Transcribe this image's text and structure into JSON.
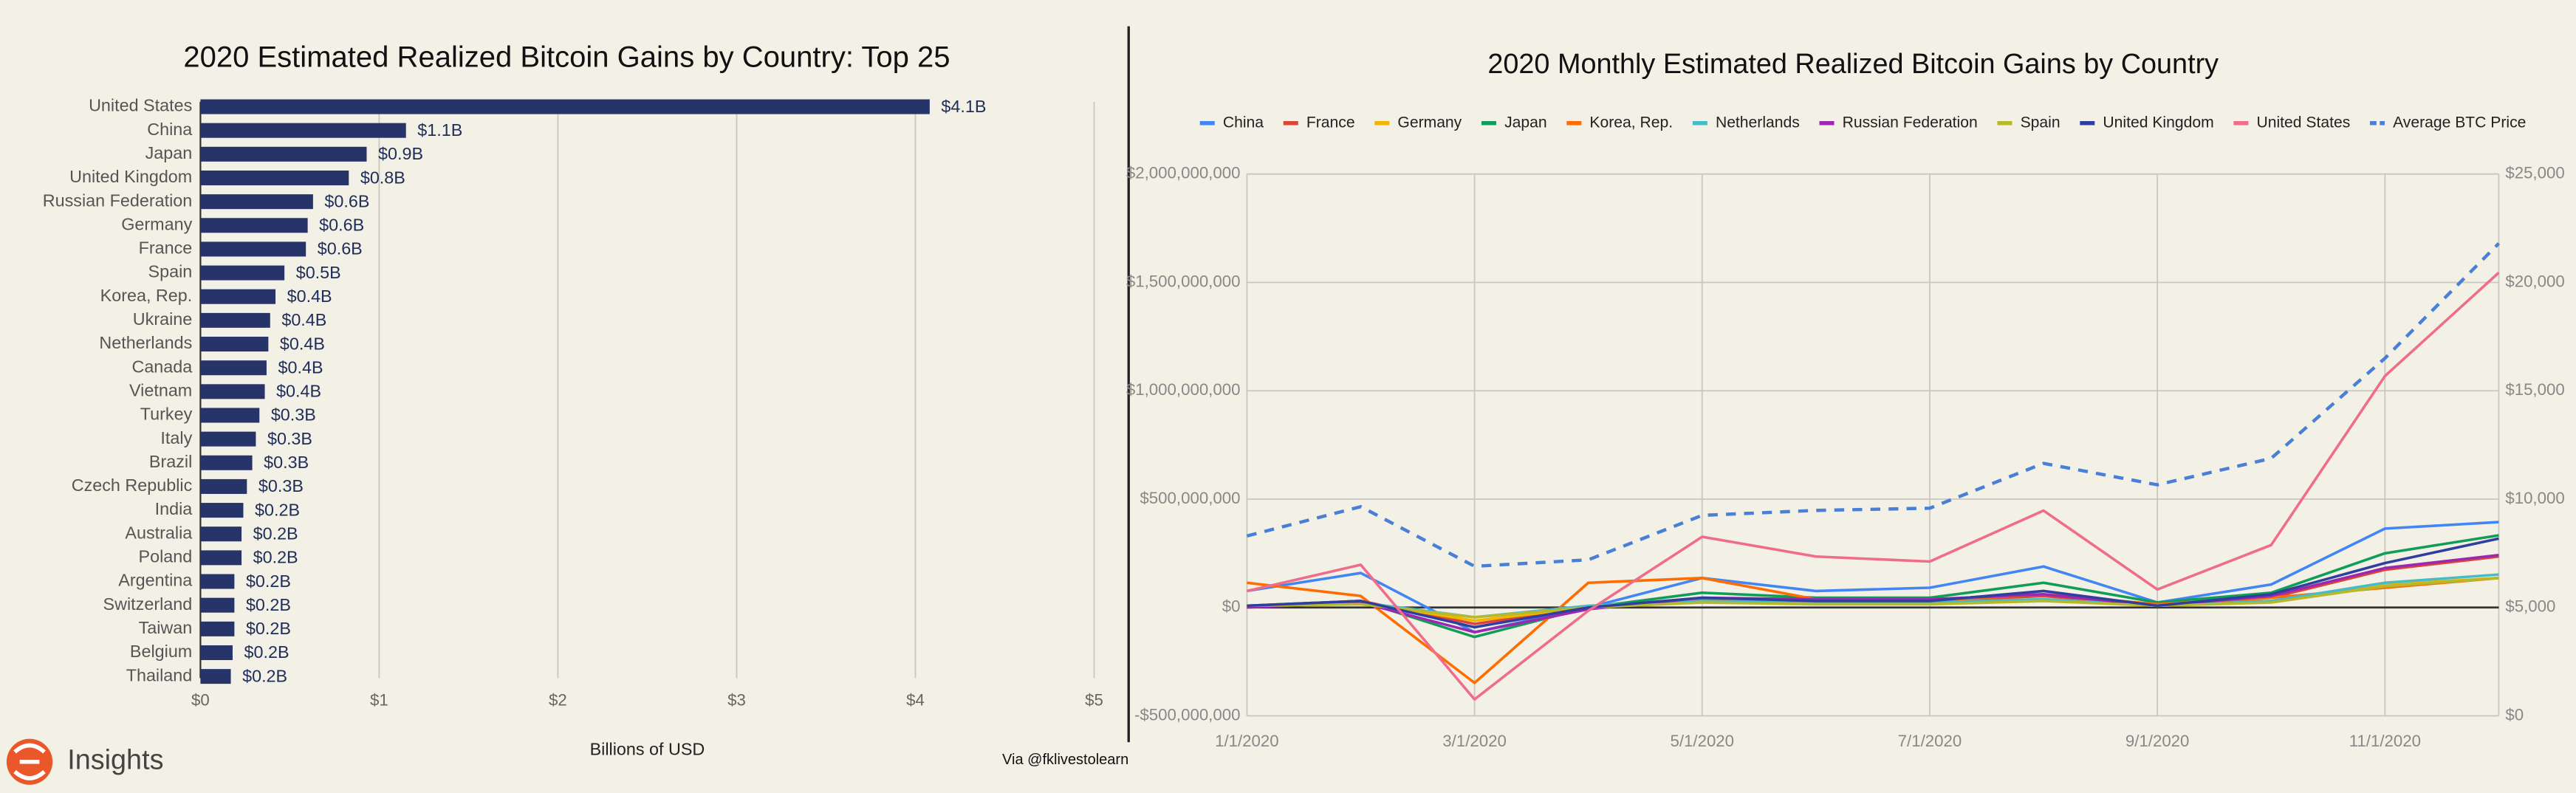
{
  "brand": "Insights",
  "credit": "Via @fklivestolearn",
  "chart_data": [
    {
      "type": "bar",
      "orientation": "horizontal",
      "title": "2020 Estimated Realized Bitcoin Gains by Country: Top 25",
      "xlabel": "Billions of USD",
      "categories": [
        "United States",
        "China",
        "Japan",
        "United Kingdom",
        "Russian Federation",
        "Germany",
        "France",
        "Spain",
        "Korea, Rep.",
        "Ukraine",
        "Netherlands",
        "Canada",
        "Vietnam",
        "Turkey",
        "Italy",
        "Brazil",
        "Czech Republic",
        "India",
        "Australia",
        "Poland",
        "Argentina",
        "Switzerland",
        "Taiwan",
        "Belgium",
        "Thailand"
      ],
      "values": [
        4.08,
        1.15,
        0.93,
        0.83,
        0.63,
        0.6,
        0.59,
        0.47,
        0.42,
        0.39,
        0.38,
        0.37,
        0.36,
        0.33,
        0.31,
        0.29,
        0.26,
        0.24,
        0.23,
        0.23,
        0.19,
        0.19,
        0.19,
        0.18,
        0.17
      ],
      "value_labels": [
        "$4.1B",
        "$1.1B",
        "$0.9B",
        "$0.8B",
        "$0.6B",
        "$0.6B",
        "$0.6B",
        "$0.5B",
        "$0.4B",
        "$0.4B",
        "$0.4B",
        "$0.4B",
        "$0.4B",
        "$0.3B",
        "$0.3B",
        "$0.3B",
        "$0.3B",
        "$0.2B",
        "$0.2B",
        "$0.2B",
        "$0.2B",
        "$0.2B",
        "$0.2B",
        "$0.2B",
        "$0.2B"
      ],
      "color": "#27346a",
      "xlim": [
        0,
        5
      ],
      "xticks": [
        {
          "value": 0,
          "label": "$0"
        },
        {
          "value": 1,
          "label": "$1"
        },
        {
          "value": 2,
          "label": "$2"
        },
        {
          "value": 3,
          "label": "$3"
        },
        {
          "value": 4,
          "label": "$4"
        },
        {
          "value": 5,
          "label": "$5"
        }
      ],
      "grid": true
    },
    {
      "type": "line",
      "title": "2020 Monthly Estimated Realized Bitcoin Gains by Country",
      "categories": [
        "1/1/2020",
        null,
        "3/1/2020",
        null,
        "5/1/2020",
        null,
        "7/1/2020",
        null,
        "9/1/2020",
        null,
        "11/1/2020",
        null
      ],
      "series": [
        {
          "name": "China",
          "color": "#4285f4",
          "values": [
            76000000,
            159000000,
            -114000000,
            0,
            136000000,
            76000000,
            91000000,
            189000000,
            23000000,
            106000000,
            364000000,
            394000000
          ]
        },
        {
          "name": "France",
          "color": "#db4437",
          "values": [
            8000000,
            30000000,
            -76000000,
            0,
            38000000,
            30000000,
            30000000,
            53000000,
            8000000,
            45000000,
            174000000,
            235000000
          ]
        },
        {
          "name": "Germany",
          "color": "#f4b400",
          "values": [
            8000000,
            23000000,
            -61000000,
            0,
            30000000,
            23000000,
            23000000,
            38000000,
            8000000,
            30000000,
            106000000,
            136000000
          ]
        },
        {
          "name": "Japan",
          "color": "#0f9d58",
          "values": [
            8000000,
            30000000,
            -136000000,
            0,
            68000000,
            45000000,
            45000000,
            114000000,
            23000000,
            68000000,
            250000000,
            333000000
          ]
        },
        {
          "name": "Korea, Rep.",
          "color": "#ff6d01",
          "values": [
            114000000,
            53000000,
            -348000000,
            114000000,
            136000000,
            38000000,
            30000000,
            61000000,
            15000000,
            45000000,
            91000000,
            136000000
          ]
        },
        {
          "name": "Netherlands",
          "color": "#46bdc6",
          "values": [
            8000000,
            23000000,
            -45000000,
            8000000,
            30000000,
            23000000,
            23000000,
            38000000,
            8000000,
            30000000,
            114000000,
            152000000
          ]
        },
        {
          "name": "Russian Federation",
          "color": "#9c27b0",
          "values": [
            0,
            23000000,
            -114000000,
            -8000000,
            45000000,
            38000000,
            38000000,
            61000000,
            8000000,
            53000000,
            182000000,
            242000000
          ]
        },
        {
          "name": "Spain",
          "color": "#b7b82a",
          "values": [
            8000000,
            15000000,
            -45000000,
            0,
            23000000,
            15000000,
            15000000,
            30000000,
            8000000,
            23000000,
            98000000,
            136000000
          ]
        },
        {
          "name": "United Kingdom",
          "color": "#303f9f",
          "values": [
            8000000,
            30000000,
            -91000000,
            0,
            45000000,
            30000000,
            30000000,
            76000000,
            8000000,
            61000000,
            205000000,
            318000000
          ]
        },
        {
          "name": "United States",
          "color": "#ef6c8a",
          "values": [
            76000000,
            197000000,
            -424000000,
            -15000000,
            326000000,
            235000000,
            212000000,
            447000000,
            83000000,
            288000000,
            1068000000,
            1545000000
          ]
        },
        {
          "name": "Average BTC Price",
          "color": "#4a7fd8",
          "axis": "y2",
          "line_style": "dashed",
          "values": [
            8300,
            9650,
            6900,
            7200,
            9250,
            9480,
            9580,
            11650,
            10660,
            11880,
            16500,
            21800
          ]
        }
      ],
      "ylim": [
        -500000000,
        2000000000
      ],
      "yticks": [
        {
          "value": -500000000,
          "label": "-$500,000,000"
        },
        {
          "value": 0,
          "label": "$0"
        },
        {
          "value": 500000000,
          "label": "$500,000,000"
        },
        {
          "value": 1000000000,
          "label": "$1,000,000,000"
        },
        {
          "value": 1500000000,
          "label": "$1,500,000,000"
        },
        {
          "value": 2000000000,
          "label": "$2,000,000,000"
        }
      ],
      "y2lim": [
        0,
        25000
      ],
      "y2ticks": [
        {
          "value": 0,
          "label": "$0"
        },
        {
          "value": 5000,
          "label": "$5,000"
        },
        {
          "value": 10000,
          "label": "$10,000"
        },
        {
          "value": 15000,
          "label": "$15,000"
        },
        {
          "value": 20000,
          "label": "$20,000"
        },
        {
          "value": 25000,
          "label": "$25,000"
        }
      ],
      "grid": true,
      "legend": "top"
    }
  ]
}
